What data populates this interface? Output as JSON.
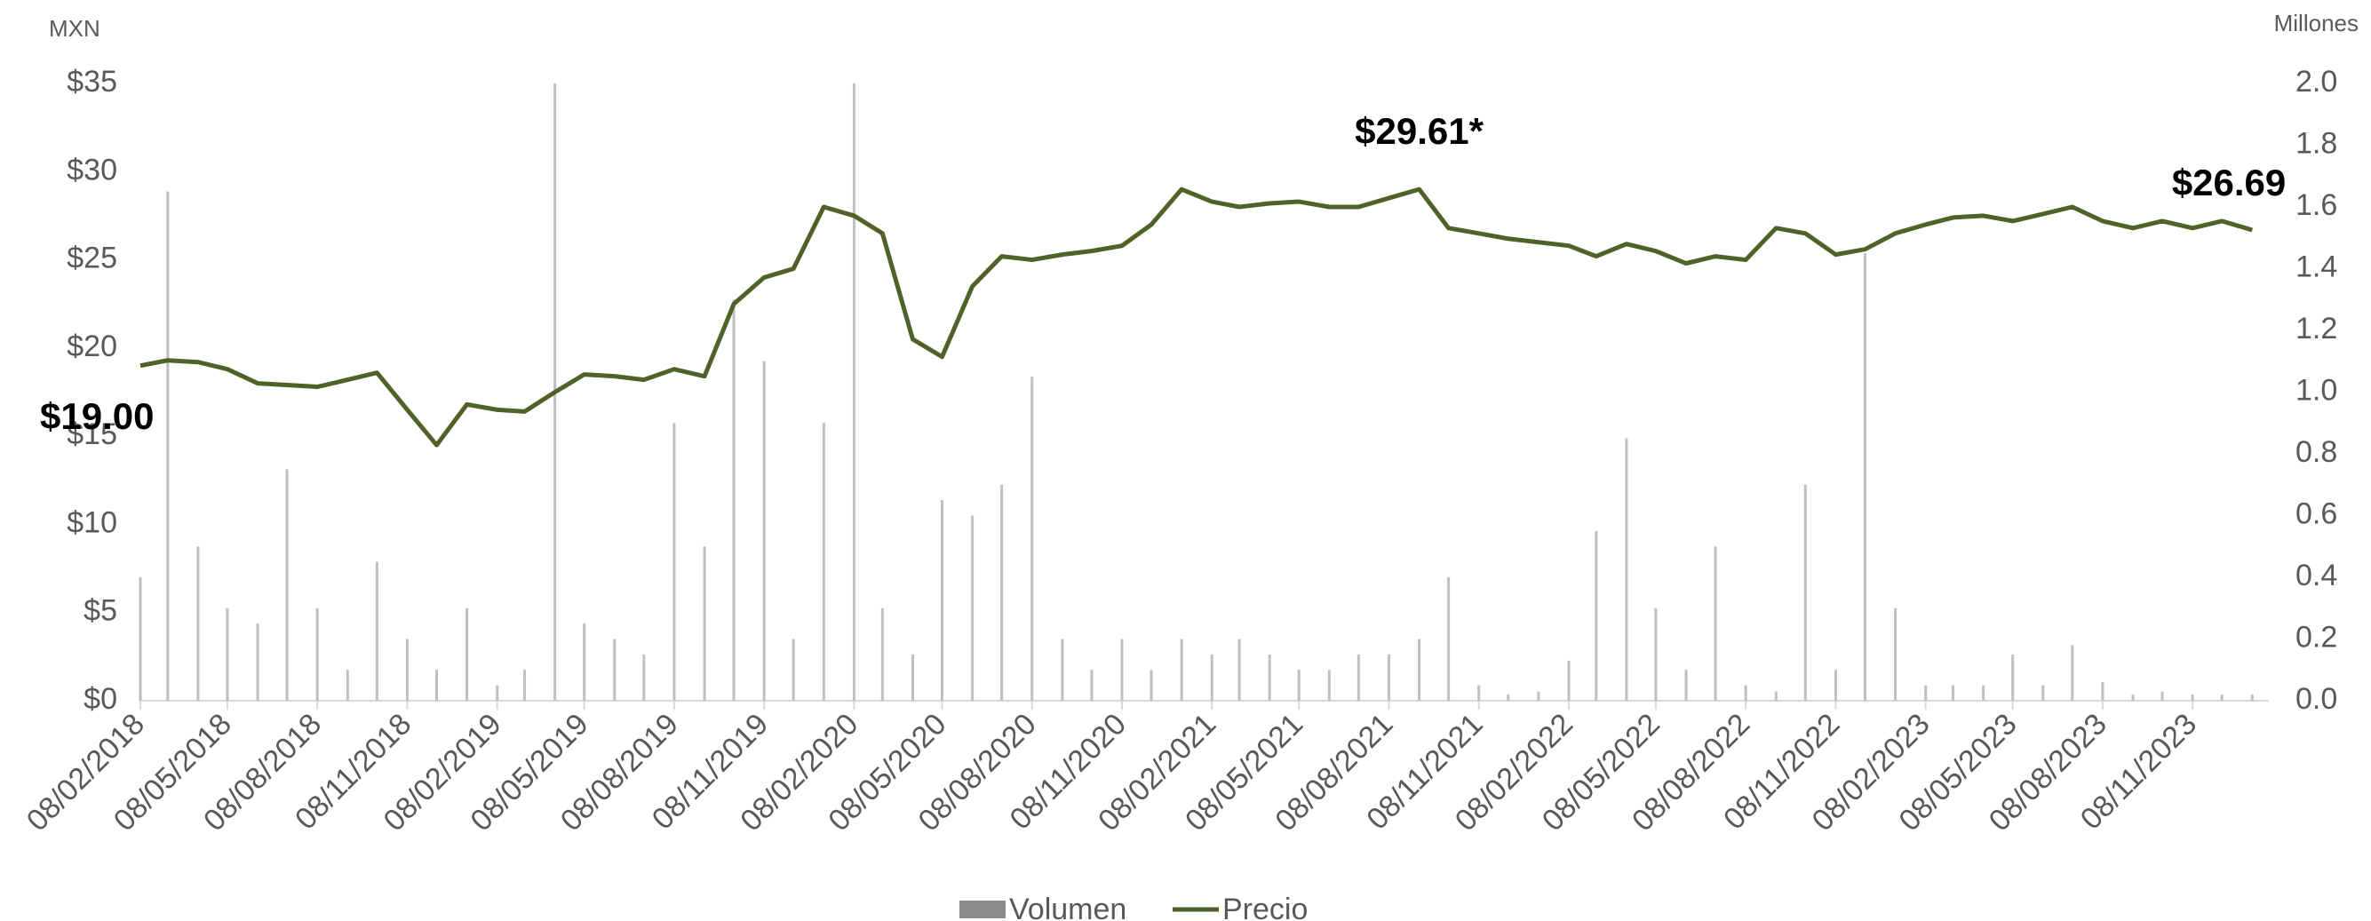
{
  "chart_data": {
    "type": "line",
    "y_axis_label": "MXN",
    "y2_axis_label": "Millones",
    "x": [
      "08/02/2018",
      "08/03/2018",
      "08/04/2018",
      "08/05/2018",
      "08/06/2018",
      "08/07/2018",
      "08/08/2018",
      "08/09/2018",
      "08/10/2018",
      "08/11/2018",
      "08/12/2018",
      "08/01/2019",
      "08/02/2019",
      "08/03/2019",
      "08/04/2019",
      "08/05/2019",
      "08/06/2019",
      "08/07/2019",
      "08/08/2019",
      "08/09/2019",
      "08/10/2019",
      "08/11/2019",
      "08/12/2019",
      "08/01/2020",
      "08/02/2020",
      "08/03/2020",
      "08/04/2020",
      "08/05/2020",
      "08/06/2020",
      "08/07/2020",
      "08/08/2020",
      "08/09/2020",
      "08/10/2020",
      "08/11/2020",
      "08/12/2020",
      "08/01/2021",
      "08/02/2021",
      "08/03/2021",
      "08/04/2021",
      "08/05/2021",
      "08/06/2021",
      "08/07/2021",
      "08/08/2021",
      "08/09/2021",
      "08/10/2021",
      "08/11/2021",
      "08/12/2021",
      "08/01/2022",
      "08/02/2022",
      "08/03/2022",
      "08/04/2022",
      "08/05/2022",
      "08/06/2022",
      "08/07/2022",
      "08/08/2022",
      "08/09/2022",
      "08/10/2022",
      "08/11/2022",
      "08/12/2022",
      "08/01/2023",
      "08/02/2023",
      "08/03/2023",
      "08/04/2023",
      "08/05/2023",
      "08/06/2023",
      "08/07/2023",
      "08/08/2023",
      "08/09/2023",
      "08/10/2023",
      "08/11/2023",
      "08/12/2023",
      "08/01/2024"
    ],
    "series": [
      {
        "name": "Volumen",
        "type": "bar",
        "axis": "y2",
        "color": "#bfbfbf",
        "legend_color": "#8c8c8c",
        "values": [
          0.4,
          1.65,
          0.5,
          0.3,
          0.25,
          0.75,
          0.3,
          0.1,
          0.45,
          0.2,
          0.1,
          0.3,
          0.05,
          0.1,
          2.0,
          0.25,
          0.2,
          0.15,
          0.9,
          0.5,
          1.3,
          1.1,
          0.2,
          0.9,
          2.0,
          0.3,
          0.15,
          0.65,
          0.6,
          0.7,
          1.05,
          0.2,
          0.1,
          0.2,
          0.1,
          0.2,
          0.15,
          0.2,
          0.15,
          0.1,
          0.1,
          0.15,
          0.15,
          0.2,
          0.4,
          0.05,
          0.02,
          0.03,
          0.13,
          0.55,
          0.85,
          0.3,
          0.1,
          0.5,
          0.05,
          0.03,
          0.7,
          0.1,
          1.45,
          0.3,
          0.05,
          0.05,
          0.05,
          0.15,
          0.05,
          0.18,
          0.06,
          0.02,
          0.03,
          0.02,
          0.02,
          0.02
        ]
      },
      {
        "name": "Precio",
        "type": "line",
        "color": "#4f6228",
        "values": [
          19.0,
          19.3,
          19.2,
          18.8,
          18.0,
          17.9,
          17.8,
          18.2,
          18.6,
          16.5,
          14.5,
          16.8,
          16.5,
          16.4,
          17.5,
          18.5,
          18.4,
          18.2,
          18.8,
          18.4,
          22.5,
          24.0,
          24.5,
          28.0,
          27.5,
          26.5,
          20.5,
          19.5,
          23.5,
          25.2,
          25.0,
          25.3,
          25.5,
          25.8,
          27.0,
          29.0,
          28.3,
          28.0,
          28.2,
          28.3,
          28.0,
          28.0,
          28.5,
          29.0,
          26.8,
          26.5,
          26.2,
          26.0,
          25.8,
          25.2,
          25.9,
          25.5,
          24.8,
          25.2,
          25.0,
          26.8,
          26.5,
          25.3,
          25.6,
          26.5,
          27.0,
          27.4,
          27.5,
          27.2,
          27.6,
          28.0,
          27.2,
          26.8,
          27.2,
          26.8,
          27.2,
          26.69
        ]
      }
    ],
    "annotations": [
      {
        "text": "$19.00",
        "x": "08/02/2018",
        "y": 19.0
      },
      {
        "text": "$29.61*",
        "x": "08/09/2021",
        "y": 29.61
      },
      {
        "text": "$26.69",
        "x": "08/01/2024",
        "y": 26.69
      }
    ],
    "xlim": [
      "08/02/2018",
      "25/01/2024"
    ],
    "xticks": [
      "08/02/2018",
      "08/05/2018",
      "08/08/2018",
      "08/11/2018",
      "08/02/2019",
      "08/05/2019",
      "08/08/2019",
      "08/11/2019",
      "08/02/2020",
      "08/05/2020",
      "08/08/2020",
      "08/11/2020",
      "08/02/2021",
      "08/05/2021",
      "08/08/2021",
      "08/11/2021",
      "08/02/2022",
      "08/05/2022",
      "08/08/2022",
      "08/11/2022",
      "08/02/2023",
      "08/05/2023",
      "08/08/2023",
      "08/11/2023"
    ],
    "ylim": [
      0,
      35
    ],
    "yticks": [
      {
        "value": 0,
        "label": "$0"
      },
      {
        "value": 5,
        "label": "$5"
      },
      {
        "value": 10,
        "label": "$10"
      },
      {
        "value": 15,
        "label": "$15"
      },
      {
        "value": 20,
        "label": "$20"
      },
      {
        "value": 25,
        "label": "$25"
      },
      {
        "value": 30,
        "label": "$30"
      },
      {
        "value": 35,
        "label": "$35"
      }
    ],
    "y2lim": [
      0,
      2
    ],
    "y2ticks": [
      {
        "value": 0,
        "label": "0.0"
      },
      0.2,
      0.4,
      0.6,
      0.8,
      {
        "value": 1,
        "label": "1.0"
      },
      1.2,
      1.4,
      1.6,
      1.8,
      {
        "value": 2,
        "label": "2.0"
      }
    ],
    "legend": "bottom"
  }
}
